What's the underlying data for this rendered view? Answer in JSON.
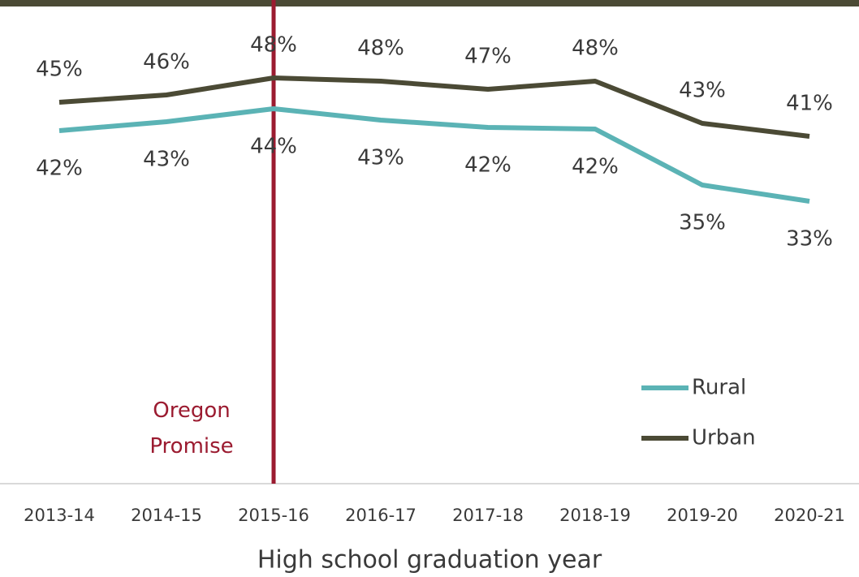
{
  "chart_data": {
    "type": "line",
    "x_label": "High school graduation year",
    "categories": [
      "2013-14",
      "2014-15",
      "2015-16",
      "2016-17",
      "2017-18",
      "2018-19",
      "2019-20",
      "2020-21"
    ],
    "series": [
      {
        "name": "Rural",
        "color": "#5bb3b5",
        "values": [
          41.7,
          42.8,
          44.4,
          43,
          42.1,
          41.9,
          35,
          33
        ],
        "value_labels": [
          "42%",
          "43%",
          "44%",
          "43%",
          "42%",
          "42%",
          "35%",
          "33%"
        ]
      },
      {
        "name": "Urban",
        "color": "#4b4a35",
        "values": [
          45.2,
          46.1,
          48.2,
          47.8,
          46.8,
          47.8,
          42.6,
          41
        ],
        "value_labels": [
          "45%",
          "46%",
          "48%",
          "48%",
          "47%",
          "48%",
          "43%",
          "41%"
        ]
      }
    ],
    "ylim": [
      0,
      50
    ],
    "grid": false,
    "legend": "lower right",
    "annotation": {
      "text": "Oregon Promise",
      "category": 2,
      "color": "#9b1b30"
    }
  }
}
